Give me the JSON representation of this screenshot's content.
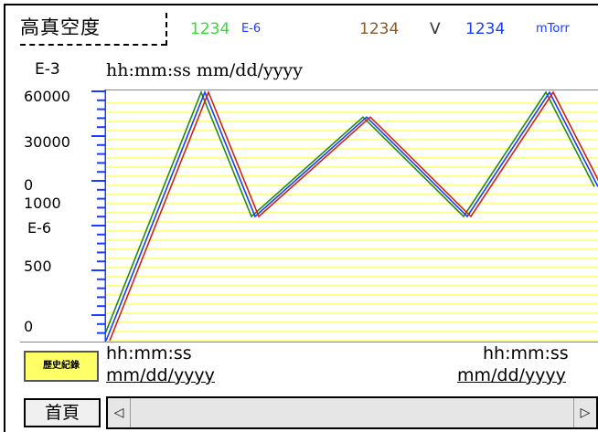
{
  "header": {
    "title": "高真空度",
    "value_green": "1234",
    "unit_green": "E-6",
    "value_brown": "1234",
    "unit_brown": "V",
    "value_blue": "1234",
    "unit_blue": "mTorr",
    "colors": {
      "green": "#33dd33",
      "brown": "#8b5a2b",
      "blue": "#1a3cff"
    }
  },
  "axis": {
    "unit_top": "E-3",
    "unit_mid": "E-6",
    "labels_top": [
      "60000",
      "30000",
      "0"
    ],
    "labels_bottom": [
      "1000",
      "500",
      "0"
    ]
  },
  "timestamp_top": "hh:mm:ss  mm/dd/yyyy",
  "bottom": {
    "history_button": "歷史紀錄",
    "left_time": "hh:mm:ss",
    "left_date": "mm/dd/yyyy",
    "right_time": "hh:mm:ss",
    "right_date": "mm/dd/yyyy",
    "home_button": "首頁",
    "scroll_left_icon": "◁",
    "scroll_right_icon": "▷"
  },
  "chart_data": {
    "type": "line",
    "grid": true,
    "grid_color": "#ffff66",
    "series": [
      {
        "color": "#228822",
        "values": [
          0,
          100,
          50,
          90,
          50,
          100,
          62
        ]
      },
      {
        "color": "#1a3cff",
        "values": [
          0,
          100,
          50,
          90,
          50,
          100,
          62
        ]
      },
      {
        "color": "#cc2222",
        "values": [
          0,
          100,
          50,
          90,
          50,
          100,
          62
        ]
      }
    ]
  }
}
